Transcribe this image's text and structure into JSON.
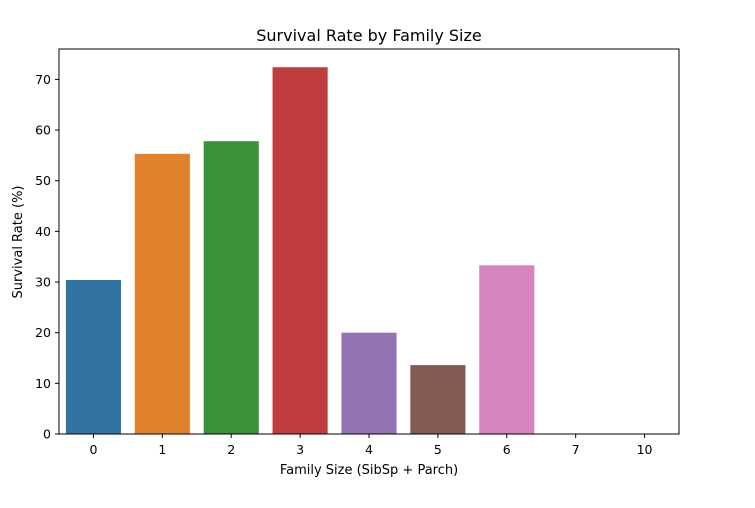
{
  "chart_data": {
    "type": "bar",
    "title": "Survival Rate by Family Size",
    "xlabel": "Family Size (SibSp + Parch)",
    "ylabel": "Survival Rate (%)",
    "categories": [
      "0",
      "1",
      "2",
      "3",
      "4",
      "5",
      "6",
      "7",
      "10"
    ],
    "values": [
      30.4,
      55.3,
      57.8,
      72.4,
      20.0,
      13.6,
      33.3,
      0.0,
      0.0
    ],
    "colors": [
      "#3274a1",
      "#e1812c",
      "#3a923a",
      "#c03d3e",
      "#9372b2",
      "#845b53",
      "#d684bd",
      "#7f7f7f",
      "#a9aa35"
    ],
    "yticks": [
      0,
      10,
      20,
      30,
      40,
      50,
      60,
      70
    ],
    "ylim": [
      0,
      76
    ],
    "grid": false,
    "legend": "none"
  }
}
